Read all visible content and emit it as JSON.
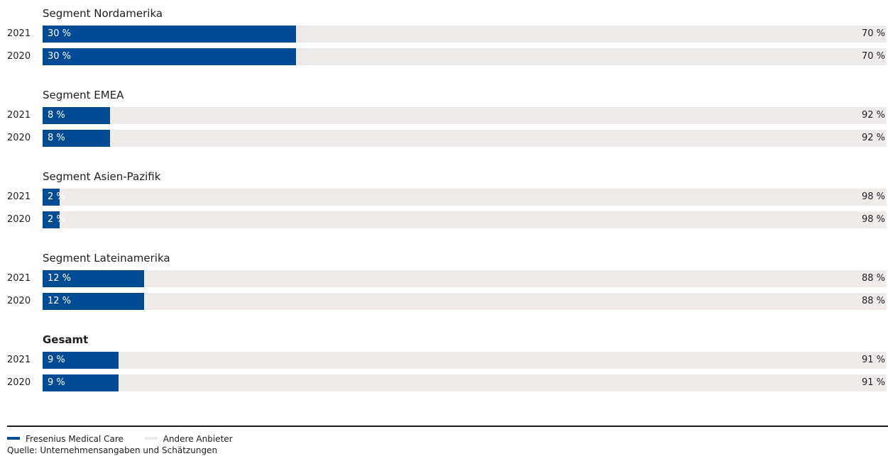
{
  "chart_data": {
    "type": "bar",
    "orientation": "horizontal",
    "stacked": true,
    "title": "",
    "xlabel": "",
    "ylabel": "",
    "xlim": [
      0,
      100
    ],
    "legend_placement": "bottom-left",
    "series": [
      {
        "name": "Fresenius Medical Care",
        "color": "#004b93"
      },
      {
        "name": "Andere Anbieter",
        "color": "#efebe9"
      }
    ],
    "groups": [
      {
        "title": "Segment Nordamerika",
        "bold": false,
        "rows": [
          {
            "year": "2021",
            "fmc": 30,
            "fmc_label": "30 %",
            "other": 70,
            "other_label": "70 %"
          },
          {
            "year": "2020",
            "fmc": 30,
            "fmc_label": "30 %",
            "other": 70,
            "other_label": "70 %"
          }
        ]
      },
      {
        "title": "Segment EMEA",
        "bold": false,
        "rows": [
          {
            "year": "2021",
            "fmc": 8,
            "fmc_label": "8 %",
            "other": 92,
            "other_label": "92 %"
          },
          {
            "year": "2020",
            "fmc": 8,
            "fmc_label": "8 %",
            "other": 92,
            "other_label": "92 %"
          }
        ]
      },
      {
        "title": "Segment Asien-Pazifik",
        "bold": false,
        "rows": [
          {
            "year": "2021",
            "fmc": 2,
            "fmc_label": "2 %",
            "other": 98,
            "other_label": "98 %"
          },
          {
            "year": "2020",
            "fmc": 2,
            "fmc_label": "2 %",
            "other": 98,
            "other_label": "98 %"
          }
        ]
      },
      {
        "title": "Segment Lateinamerika",
        "bold": false,
        "rows": [
          {
            "year": "2021",
            "fmc": 12,
            "fmc_label": "12 %",
            "other": 88,
            "other_label": "88 %"
          },
          {
            "year": "2020",
            "fmc": 12,
            "fmc_label": "12 %",
            "other": 88,
            "other_label": "88 %"
          }
        ]
      },
      {
        "title": "Gesamt",
        "bold": true,
        "rows": [
          {
            "year": "2021",
            "fmc": 9,
            "fmc_label": "9 %",
            "other": 91,
            "other_label": "91 %"
          },
          {
            "year": "2020",
            "fmc": 9,
            "fmc_label": "9 %",
            "other": 91,
            "other_label": "91 %"
          }
        ]
      }
    ]
  },
  "legend": {
    "fmc_label": "Fresenius Medical Care",
    "other_label": "Andere Anbieter"
  },
  "source": "Quelle: Unternehmensangaben und Schätzungen"
}
